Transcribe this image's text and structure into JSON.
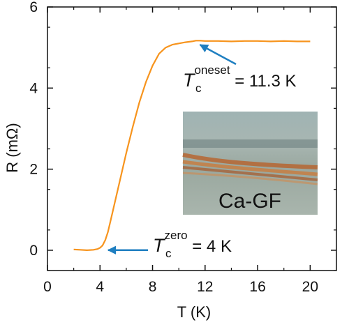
{
  "chart_data": {
    "type": "line",
    "xlabel": "T (K)",
    "ylabel": "R (mΩ)",
    "xlim": [
      0,
      22
    ],
    "ylim": [
      -0.5,
      6
    ],
    "x_ticks": [
      0,
      4,
      8,
      12,
      16,
      20
    ],
    "y_ticks": [
      0,
      2,
      4,
      6
    ],
    "grid": false,
    "series": [
      {
        "color": "#f7941d",
        "x": [
          2.0,
          2.5,
          3.0,
          3.5,
          3.8,
          4.0,
          4.2,
          4.4,
          4.6,
          4.8,
          5.0,
          5.5,
          6.0,
          6.5,
          7.0,
          7.5,
          8.0,
          8.5,
          9.0,
          9.5,
          10.0,
          10.5,
          11.0,
          11.3,
          11.6,
          12.0,
          13.0,
          14.0,
          15.0,
          16.0,
          17.0,
          18.0,
          19.0,
          20.0
        ],
        "y": [
          0.02,
          0.01,
          0.0,
          0.01,
          0.03,
          0.06,
          0.12,
          0.25,
          0.45,
          0.72,
          1.0,
          1.7,
          2.4,
          3.05,
          3.65,
          4.15,
          4.55,
          4.85,
          5.0,
          5.07,
          5.1,
          5.13,
          5.15,
          5.17,
          5.17,
          5.16,
          5.16,
          5.15,
          5.16,
          5.16,
          5.15,
          5.16,
          5.15,
          5.15
        ]
      }
    ],
    "annotations": [
      {
        "symbol": "T",
        "sub": "c",
        "sup": "oneset",
        "text": " = 11.3 K",
        "arrow_to": [
          11.3,
          5.17
        ]
      },
      {
        "symbol": "T",
        "sub": "c",
        "sup": "zero",
        "text": " = 4 K",
        "arrow_to": [
          4.3,
          0.02
        ]
      }
    ],
    "inset": {
      "label": "Ca-GF"
    }
  },
  "colors": {
    "curve": "#f7941d",
    "arrow": "#1f7fc1",
    "axis": "#111111"
  }
}
